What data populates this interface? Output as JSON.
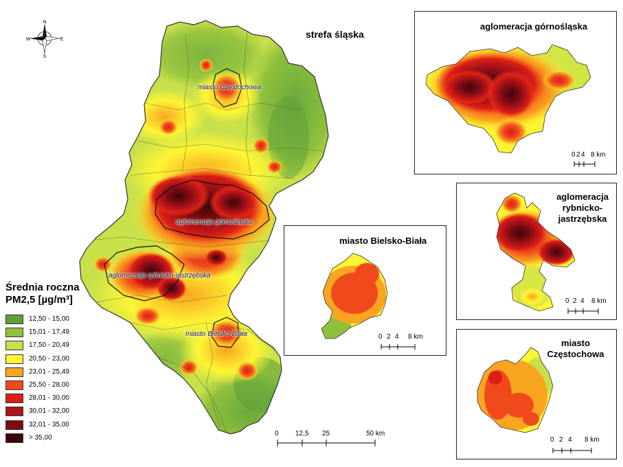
{
  "map": {
    "zone_title": "strefa śląska",
    "region_labels": {
      "czestochowa": "miasto Częstochowa",
      "gornoslaska": "aglomeracja górnośląska",
      "rybnicko": "aglomeracja rybnicko-jastrzębska",
      "bielsko": "miasto Bielsko-Biała"
    },
    "compass": {
      "n": "N",
      "s": "S",
      "e": "E",
      "w": "W"
    }
  },
  "insets": {
    "gornoslaska": {
      "title": "aglomeracja górnośląska",
      "scale": [
        "0",
        "2",
        "4",
        "8 km"
      ]
    },
    "rybnicko": {
      "title_lines": [
        "aglomeracja",
        "rybnicko-",
        "jastrzębska"
      ],
      "scale": [
        "0",
        "2",
        "4",
        "8 km"
      ]
    },
    "bielsko": {
      "title": "miasto Bielsko-Biała",
      "scale": [
        "0",
        "2",
        "4",
        "8 km"
      ]
    },
    "czestochowa": {
      "title_lines": [
        "miasto",
        "Częstochowa"
      ],
      "scale": [
        "0",
        "2",
        "4",
        "8 km"
      ]
    }
  },
  "main_scale": {
    "ticks": [
      "0",
      "12,5",
      "25",
      "50 km"
    ]
  },
  "legend": {
    "title_lines": [
      "Średnia roczna",
      "PM2,5 [µg/m³]"
    ],
    "items": [
      {
        "label": "12,50 - 15,00",
        "color": "#5ea03a"
      },
      {
        "label": "15,01 - 17,49",
        "color": "#8fc03c"
      },
      {
        "label": "17,50 - 20,49",
        "color": "#c8e04a"
      },
      {
        "label": "20,50 - 23,00",
        "color": "#fdf534"
      },
      {
        "label": "23,01 - 25,49",
        "color": "#f9a520"
      },
      {
        "label": "25,50 - 28,00",
        "color": "#f04a1c"
      },
      {
        "label": "28,01 - 30,00",
        "color": "#dc1e14"
      },
      {
        "label": "30,01 - 32,00",
        "color": "#b0141a"
      },
      {
        "label": "32,01 - 35,00",
        "color": "#7c0c12"
      },
      {
        "label": "> 35,00",
        "color": "#3e060a"
      }
    ]
  }
}
